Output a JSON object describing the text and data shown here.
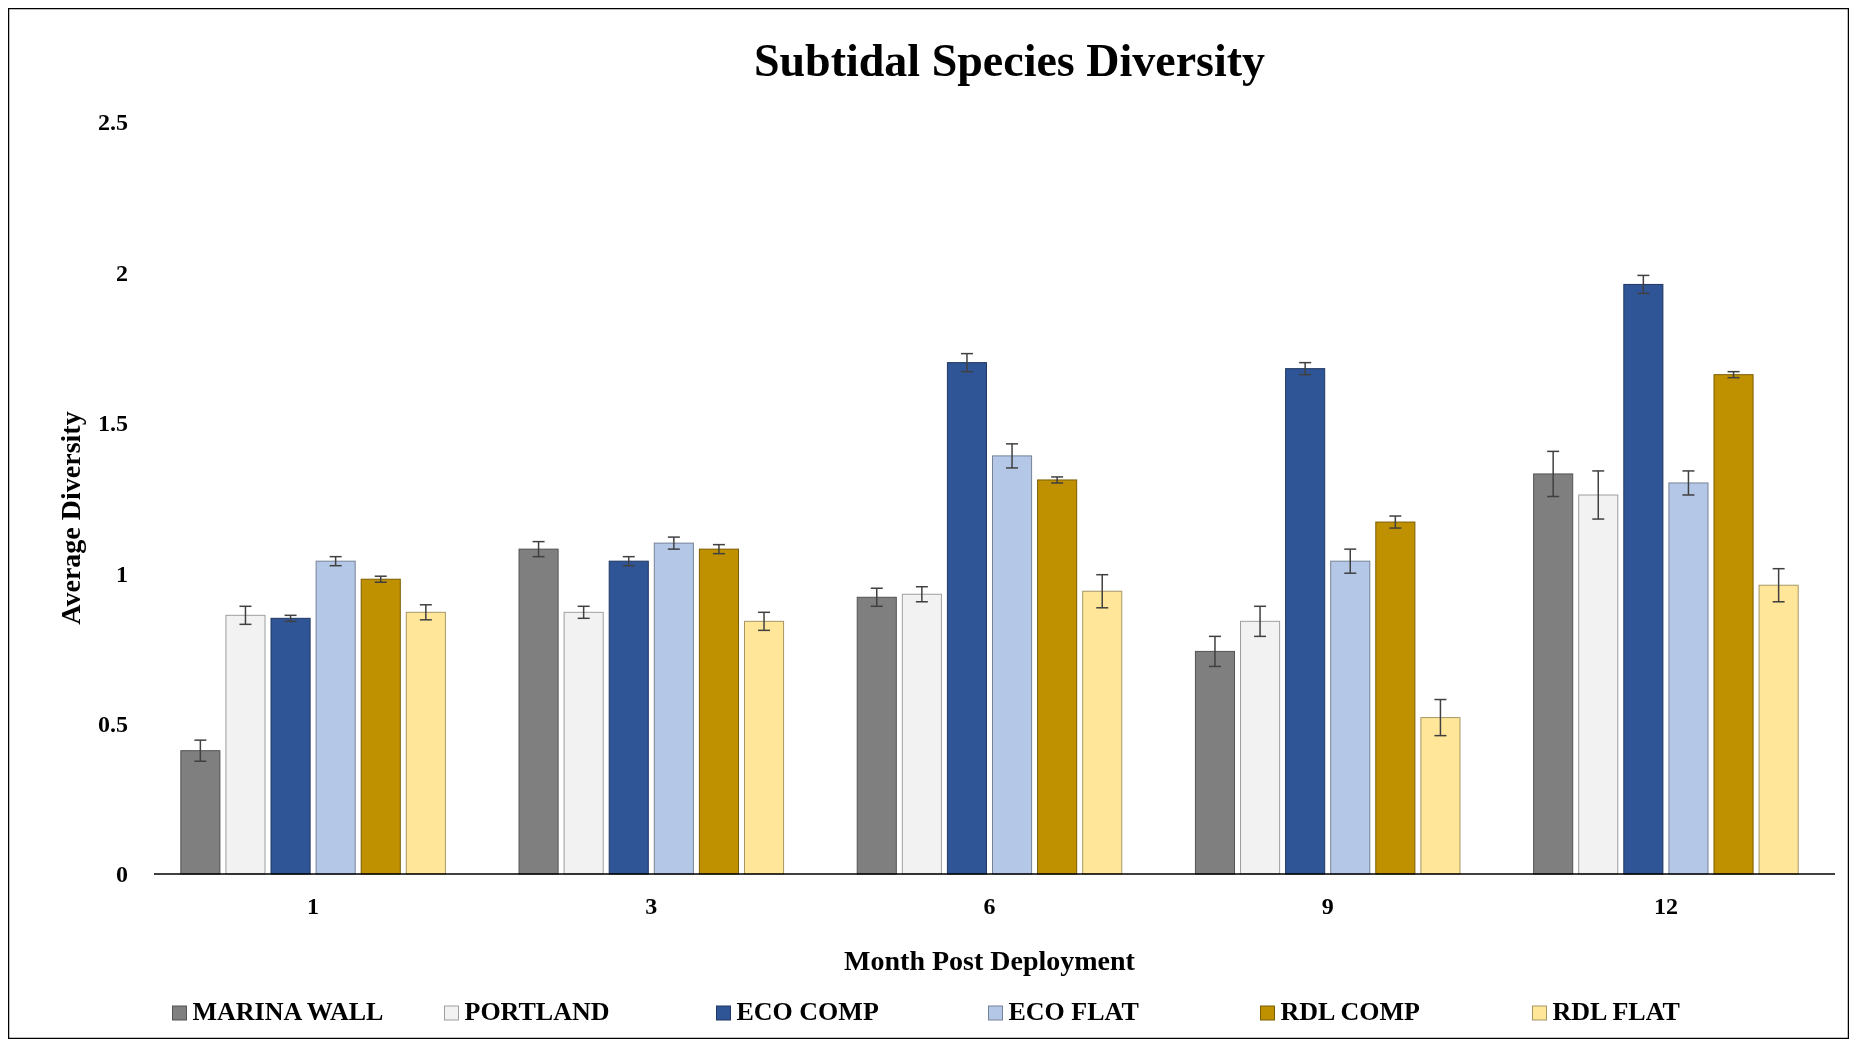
{
  "chart_data": {
    "type": "bar",
    "title": "Subtidal Species Diversity",
    "xlabel": "Month Post Deployment",
    "ylabel": "Average Diversity",
    "categories": [
      "1",
      "3",
      "6",
      "9",
      "12"
    ],
    "ylim": [
      0,
      2.5
    ],
    "yticks": [
      0,
      0.5,
      1,
      1.5,
      2,
      2.5
    ],
    "grid": false,
    "legend": "bottom",
    "series": [
      {
        "name": "MARINA WALL",
        "color": "#7f7f7f",
        "values": [
          0.41,
          1.08,
          0.92,
          0.74,
          1.33
        ],
        "errors": [
          0.035,
          0.025,
          0.03,
          0.05,
          0.075
        ]
      },
      {
        "name": "PORTLAND",
        "color": "#f2f2f2",
        "values": [
          0.86,
          0.87,
          0.93,
          0.84,
          1.26
        ],
        "errors": [
          0.03,
          0.02,
          0.025,
          0.05,
          0.08
        ]
      },
      {
        "name": "ECO COMP",
        "color": "#2f5597",
        "values": [
          0.85,
          1.04,
          1.7,
          1.68,
          1.96
        ],
        "errors": [
          0.01,
          0.015,
          0.03,
          0.02,
          0.03
        ]
      },
      {
        "name": "ECO FLAT",
        "color": "#b4c7e7",
        "values": [
          1.04,
          1.1,
          1.39,
          1.04,
          1.3
        ],
        "errors": [
          0.015,
          0.02,
          0.04,
          0.04,
          0.04
        ]
      },
      {
        "name": "RDL COMP",
        "color": "#bf9000",
        "values": [
          0.98,
          1.08,
          1.31,
          1.17,
          1.66
        ],
        "errors": [
          0.01,
          0.015,
          0.01,
          0.02,
          0.01
        ]
      },
      {
        "name": "RDL FLAT",
        "color": "#ffe699",
        "values": [
          0.87,
          0.84,
          0.94,
          0.52,
          0.96
        ],
        "errors": [
          0.025,
          0.03,
          0.055,
          0.06,
          0.055
        ]
      }
    ]
  }
}
